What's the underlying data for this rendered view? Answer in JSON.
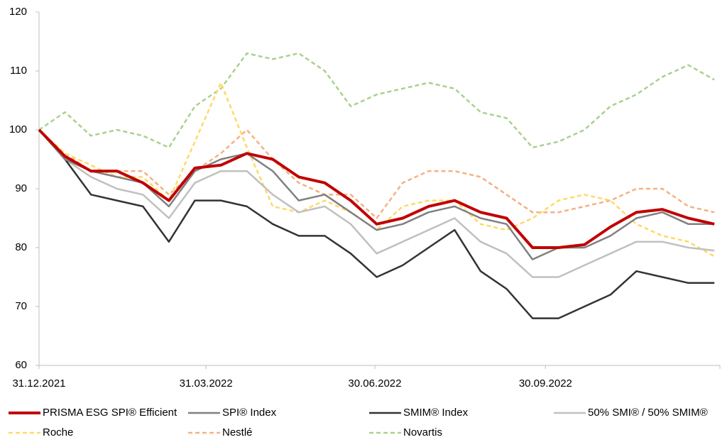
{
  "chart_data": {
    "type": "line",
    "x": [
      "2021-12-31",
      "2022-01-14",
      "2022-01-28",
      "2022-02-11",
      "2022-02-25",
      "2022-03-11",
      "2022-03-25",
      "2022-04-08",
      "2022-04-22",
      "2022-05-06",
      "2022-05-20",
      "2022-06-03",
      "2022-06-17",
      "2022-07-01",
      "2022-07-15",
      "2022-07-29",
      "2022-08-12",
      "2022-08-26",
      "2022-09-09",
      "2022-09-23",
      "2022-10-07",
      "2022-10-21",
      "2022-11-04",
      "2022-11-18",
      "2022-12-02",
      "2022-12-16",
      "2022-12-30"
    ],
    "xlim": [
      "2021-12-31",
      "2023-01-02"
    ],
    "xticks": [
      {
        "value": "2021-12-31",
        "label": "31.12.2021"
      },
      {
        "value": "2022-03-31",
        "label": "31.03.2022"
      },
      {
        "value": "2022-06-30",
        "label": "30.06.2022"
      },
      {
        "value": "2022-09-30",
        "label": "30.09.2022"
      }
    ],
    "ylim": [
      60,
      120
    ],
    "yticks": [
      60,
      70,
      80,
      90,
      100,
      110,
      120
    ],
    "grid": false,
    "series": [
      {
        "name": "PRISMA ESG SPI® Efficient",
        "color": "#c00000",
        "style": "solid",
        "values": [
          100,
          95.5,
          93,
          93,
          91,
          88,
          93.5,
          94,
          96,
          95,
          92,
          91,
          88,
          84,
          85,
          87,
          88,
          86,
          85,
          80,
          80,
          80.5,
          83.5,
          86,
          86.5,
          85,
          84
        ]
      },
      {
        "name": "SPI® Index",
        "color": "#808080",
        "style": "solid",
        "values": [
          100,
          95,
          93,
          92,
          91,
          87,
          93,
          95,
          96,
          93,
          88,
          89,
          86,
          83,
          84,
          86,
          87,
          85,
          84,
          78,
          80,
          80,
          82,
          85,
          86,
          84,
          84
        ]
      },
      {
        "name": "SMIM® Index",
        "color": "#333333",
        "style": "solid",
        "values": [
          100,
          95,
          89,
          88,
          87,
          81,
          88,
          88,
          87,
          84,
          82,
          82,
          79,
          75,
          77,
          80,
          83,
          76,
          73,
          68,
          68,
          70,
          72,
          76,
          75,
          74,
          74
        ]
      },
      {
        "name": "50% SMI® / 50% SMIM®",
        "color": "#c0c0c0",
        "style": "solid",
        "values": [
          100,
          95,
          92,
          90,
          89,
          85,
          91,
          93,
          93,
          89,
          86,
          87,
          84,
          79,
          81,
          83,
          85,
          81,
          79,
          75,
          75,
          77,
          79,
          81,
          81,
          80,
          79.5
        ]
      },
      {
        "name": "Roche",
        "color": "#ffd966",
        "style": "dashed",
        "values": [
          100,
          96,
          94,
          92,
          92,
          88,
          98,
          108,
          97,
          87,
          86,
          88,
          86,
          83,
          87,
          88,
          88,
          84,
          83,
          85,
          88,
          89,
          88,
          84,
          82,
          81,
          78.5
        ]
      },
      {
        "name": "Nestlé",
        "color": "#f4b183",
        "style": "dashed",
        "values": [
          100,
          96,
          93,
          93,
          93,
          89,
          93,
          96,
          100,
          95,
          91,
          89,
          89,
          85,
          91,
          93,
          93,
          92,
          89,
          86,
          86,
          87,
          88,
          90,
          90,
          87,
          86
        ]
      },
      {
        "name": "Novartis",
        "color": "#a9d18e",
        "style": "dashed",
        "values": [
          100,
          103,
          99,
          100,
          99,
          97,
          104,
          107,
          113,
          112,
          113,
          110,
          104,
          106,
          107,
          108,
          107,
          103,
          102,
          97,
          98,
          100,
          104,
          106,
          109,
          111,
          108.5
        ]
      }
    ]
  }
}
